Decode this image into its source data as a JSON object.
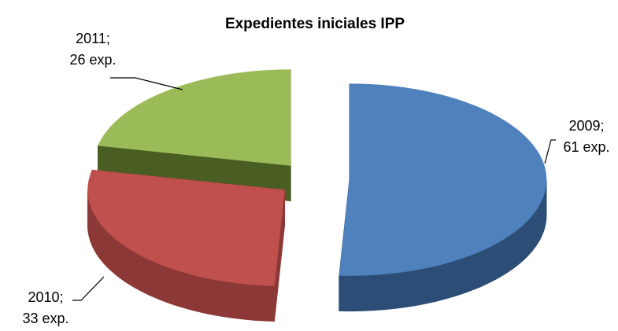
{
  "chart_data": {
    "type": "pie3d",
    "title": "Expedientes iniciales IPP",
    "categories": [
      "2009",
      "2010",
      "2011"
    ],
    "label_separator": ";",
    "values": [
      61,
      33,
      26
    ],
    "value_labels": [
      "61 exp.",
      "33 exp.",
      "26 exp."
    ],
    "colors": [
      "#4f81bd",
      "#c0504d",
      "#9bbb59"
    ],
    "side_colors": [
      "#2c4d75",
      "#8c3836",
      "#4a5e23"
    ]
  }
}
